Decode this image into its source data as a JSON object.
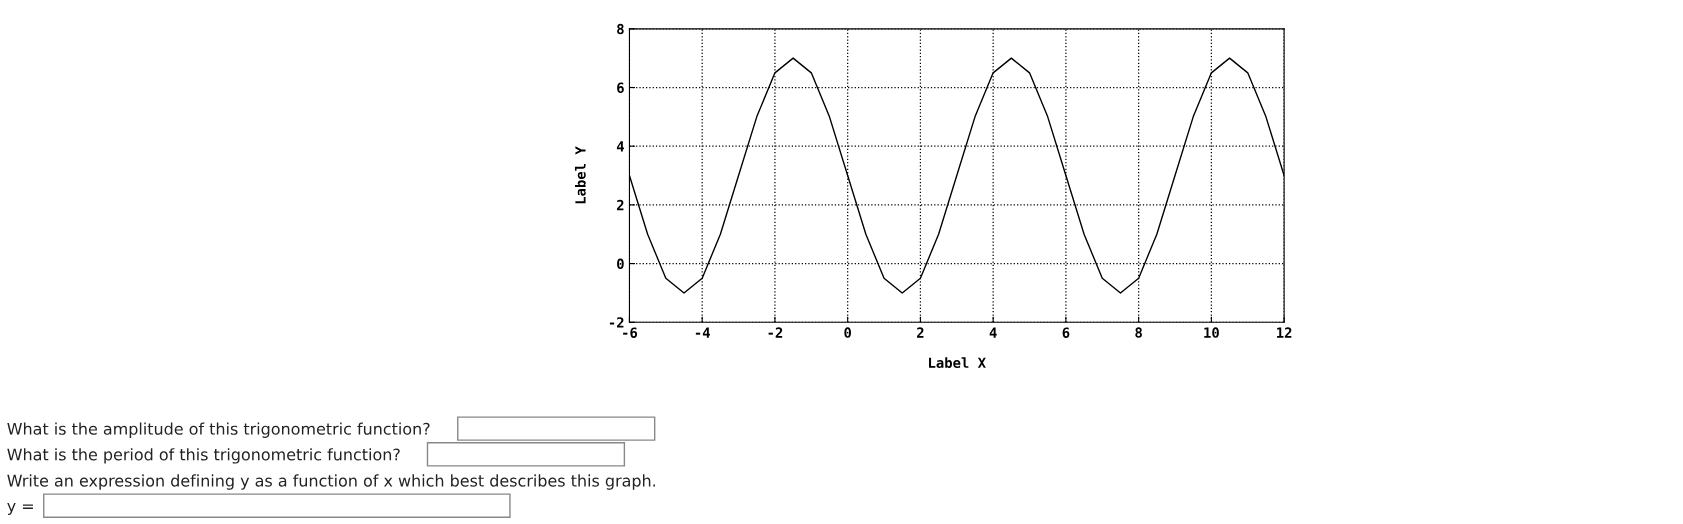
{
  "chart_data": {
    "type": "line",
    "xlabel": "Label X",
    "ylabel": "Label Y",
    "x": [
      -6,
      -5.5,
      -5,
      -4.5,
      -4,
      -3.5,
      -3,
      -2.5,
      -2,
      -1.5,
      -1,
      -0.5,
      0,
      0.5,
      1,
      1.5,
      2,
      2.5,
      3,
      3.5,
      4,
      4.5,
      5,
      5.5,
      6,
      6.5,
      7,
      7.5,
      8,
      8.5,
      9,
      9.5,
      10,
      10.5,
      11,
      11.5,
      12
    ],
    "series": [
      {
        "color": "#000000",
        "values": [
          3,
          1,
          -0.5,
          -1,
          -0.5,
          1,
          3,
          5,
          6.5,
          7,
          6.5,
          5,
          3,
          1,
          -0.5,
          -1,
          -0.5,
          1,
          3,
          5,
          6.5,
          7,
          6.5,
          5,
          3,
          1,
          -0.5,
          -1,
          -0.5,
          1,
          3,
          5,
          6.5,
          7,
          6.5,
          5,
          3
        ]
      }
    ],
    "xlim": [
      -6,
      12
    ],
    "xticks": [
      -6,
      -4,
      -2,
      0,
      2,
      4,
      6,
      8,
      10,
      12
    ],
    "ylim": [
      -2,
      8
    ],
    "yticks": [
      -2,
      0,
      2,
      4,
      6,
      8
    ],
    "grid": true,
    "line_style": "solid",
    "marker": "none",
    "legend": false,
    "annotations": [
      "What is the amplitude of this trigonometric function?",
      "What is the period of this trigonometric function?",
      "Write an expression defining y as a function of x which best describes this graph.",
      "y ="
    ]
  }
}
